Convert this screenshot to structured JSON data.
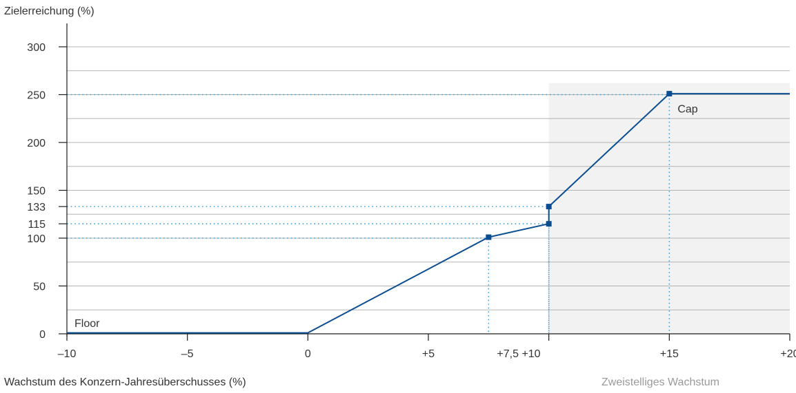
{
  "chart_data": {
    "type": "line",
    "ylabel": "Zielerreichung (%)",
    "xlabel": "Wachstum des Konzern-Jahresüberschusses (%)",
    "region_label": "Zweistelliges Wachstum",
    "xlim": [
      -10,
      20
    ],
    "ylim": [
      0,
      300
    ],
    "highlight_region": {
      "x_from": 10,
      "x_to": 20,
      "y_to": 262,
      "color": "#f2f2f2"
    },
    "colors": {
      "line": "#0a4d91",
      "guide": "#3aa0d8",
      "grid": "#b3b3b3",
      "axis": "#1a1a1a"
    },
    "x_ticks": [
      {
        "value": -10,
        "label": "–10"
      },
      {
        "value": -5,
        "label": "–5"
      },
      {
        "value": 0,
        "label": "0"
      },
      {
        "value": 5,
        "label": "+5"
      },
      {
        "value": 8.75,
        "label": "+7,5 +10"
      },
      {
        "value": 15,
        "label": "+15"
      },
      {
        "value": 20,
        "label": "+20"
      }
    ],
    "y_ticks": [
      {
        "value": 0,
        "label": "0"
      },
      {
        "value": 50,
        "label": "50"
      },
      {
        "value": 100,
        "label": "100"
      },
      {
        "value": 115,
        "label": "115"
      },
      {
        "value": 133,
        "label": "133"
      },
      {
        "value": 150,
        "label": "150"
      },
      {
        "value": 200,
        "label": "200"
      },
      {
        "value": 250,
        "label": "250"
      },
      {
        "value": 300,
        "label": "300"
      }
    ],
    "grid_y": [
      25,
      50,
      75,
      100,
      125,
      150,
      175,
      200,
      225,
      250,
      275,
      300
    ],
    "series": [
      {
        "points": [
          [
            -10,
            1
          ],
          [
            0,
            1
          ],
          [
            7.5,
            101
          ],
          [
            10,
            115
          ],
          [
            10,
            133
          ],
          [
            15,
            251
          ],
          [
            20,
            251
          ]
        ]
      }
    ],
    "markers": [
      [
        7.5,
        101
      ],
      [
        10,
        115
      ],
      [
        10,
        133
      ],
      [
        15,
        251
      ]
    ],
    "guides": [
      {
        "x": 7.5,
        "y": 100
      },
      {
        "x": 10,
        "y": 115
      },
      {
        "x": 10,
        "y": 133
      },
      {
        "x": 15,
        "y": 250
      }
    ],
    "annotations": [
      {
        "text": "Floor",
        "x": -10,
        "y": 0
      },
      {
        "text": "Cap",
        "x": 15,
        "y": 250
      }
    ]
  }
}
